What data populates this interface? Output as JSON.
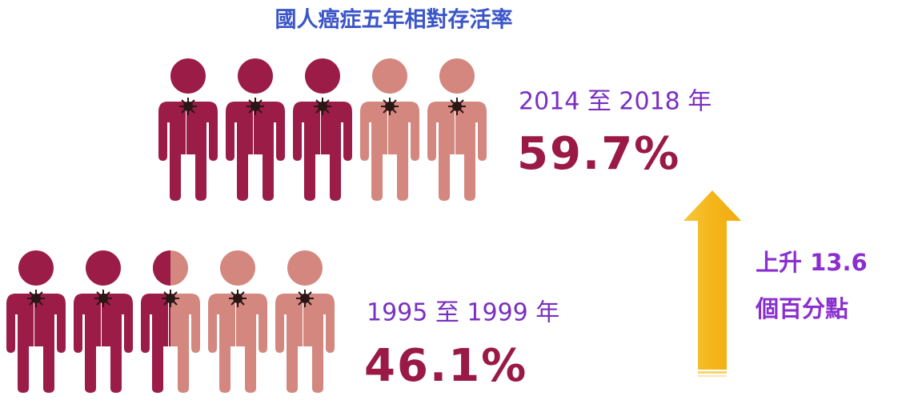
{
  "title": "國人癌症五年相對存活率",
  "groups": [
    {
      "period": "2014 至 2018 年",
      "rate": "59.7%"
    },
    {
      "period": "1995 至 1999 年",
      "rate": "46.1%"
    }
  ],
  "change": {
    "line1": "上升 13.6",
    "line2": "個百分點"
  }
}
